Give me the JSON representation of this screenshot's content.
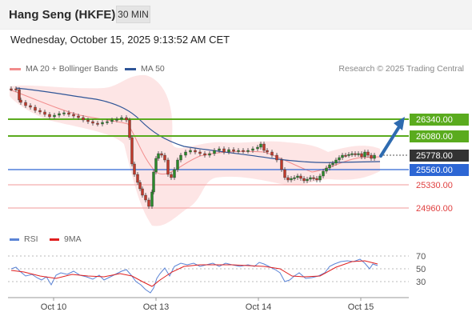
{
  "header": {
    "title": "Hang Seng (HKFE)",
    "interval": "30 MIN",
    "datetime": "Wednesday, October 15, 2025 9:13:52 AM CET"
  },
  "legend": {
    "ma20_label": "MA 20 + Bollinger Bands",
    "ma20_color": "#f28c8c",
    "ma50_label": "MA 50",
    "ma50_color": "#2f5597",
    "copyright": "Research © 2025 Trading Central"
  },
  "price_levels": [
    {
      "value": 26340,
      "label": "26340.00",
      "kind": "resistance",
      "color": "#5aab1e"
    },
    {
      "value": 26080,
      "label": "26080.00",
      "kind": "resistance",
      "color": "#5aab1e"
    },
    {
      "value": 25778,
      "label": "25778.00",
      "kind": "last-price",
      "color": "#333333"
    },
    {
      "value": 25560,
      "label": "25560.00",
      "kind": "pivot",
      "color": "#2d66d4"
    },
    {
      "value": 25330,
      "label": "25330.00",
      "kind": "support",
      "color": "#e04040"
    },
    {
      "value": 24960,
      "label": "24960.00",
      "kind": "support",
      "color": "#e04040"
    }
  ],
  "rsi": {
    "legend_rsi": "RSI",
    "legend_9ma": "9MA",
    "rsi_color": "#5b84d6",
    "ma_color": "#e02020",
    "levels": [
      "70",
      "50",
      "30"
    ]
  },
  "x_axis": [
    "Oct 10",
    "Oct 13",
    "Oct 14",
    "Oct 15"
  ],
  "colors": {
    "up": "#2a8a2a",
    "down": "#c0392b",
    "band": "#fbdada",
    "arrow": "#2e6bb0"
  }
}
